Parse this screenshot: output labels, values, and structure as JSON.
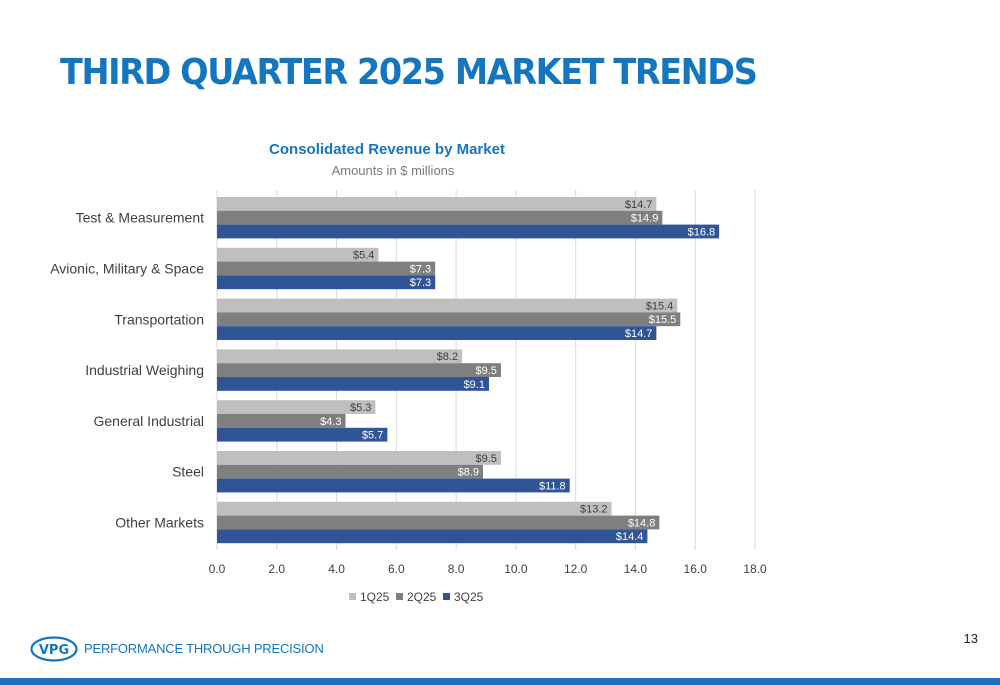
{
  "slide": {
    "title": "THIRD QUARTER 2025 MARKET TRENDS",
    "tagline": "PERFORMANCE THROUGH PRECISION",
    "page_number": "13",
    "logo_text": "VPG"
  },
  "colors": {
    "accent": "#1576c0",
    "band": "#1a6fbe",
    "series": [
      "#bfbfbf",
      "#7f7f7f",
      "#2f5597"
    ]
  },
  "chart_data": {
    "type": "bar",
    "orientation": "horizontal",
    "title": "Consolidated Revenue by Market",
    "subtitle": "Amounts in $ millions",
    "categories": [
      "Test & Measurement",
      "Avionic, Military & Space",
      "Transportation",
      "Industrial Weighing",
      "General Industrial",
      "Steel",
      "Other Markets"
    ],
    "series": [
      {
        "name": "1Q25",
        "values": [
          14.7,
          5.4,
          15.4,
          8.2,
          5.3,
          9.5,
          13.2
        ],
        "labels": [
          "$14.7",
          "$5.4",
          "$15.4",
          "$8.2",
          "$5.3",
          "$9.5",
          "$13.2"
        ]
      },
      {
        "name": "2Q25",
        "values": [
          14.9,
          7.3,
          15.5,
          9.5,
          4.3,
          8.9,
          14.8
        ],
        "labels": [
          "$14.9",
          "$7.3",
          "$15.5",
          "$9.5",
          "$4.3",
          "$8.9",
          "$14.8"
        ]
      },
      {
        "name": "3Q25",
        "values": [
          16.8,
          7.3,
          14.7,
          9.1,
          5.7,
          11.8,
          14.4
        ],
        "labels": [
          "$16.8",
          "$7.3",
          "$14.7",
          "$9.1",
          "$5.7",
          "$11.8",
          "$14.4"
        ]
      }
    ],
    "xlim": [
      0,
      18
    ],
    "xticks": [
      "0.0",
      "2.0",
      "4.0",
      "6.0",
      "8.0",
      "10.0",
      "12.0",
      "14.0",
      "16.0",
      "18.0"
    ],
    "grid": true,
    "legend_position": "bottom"
  }
}
